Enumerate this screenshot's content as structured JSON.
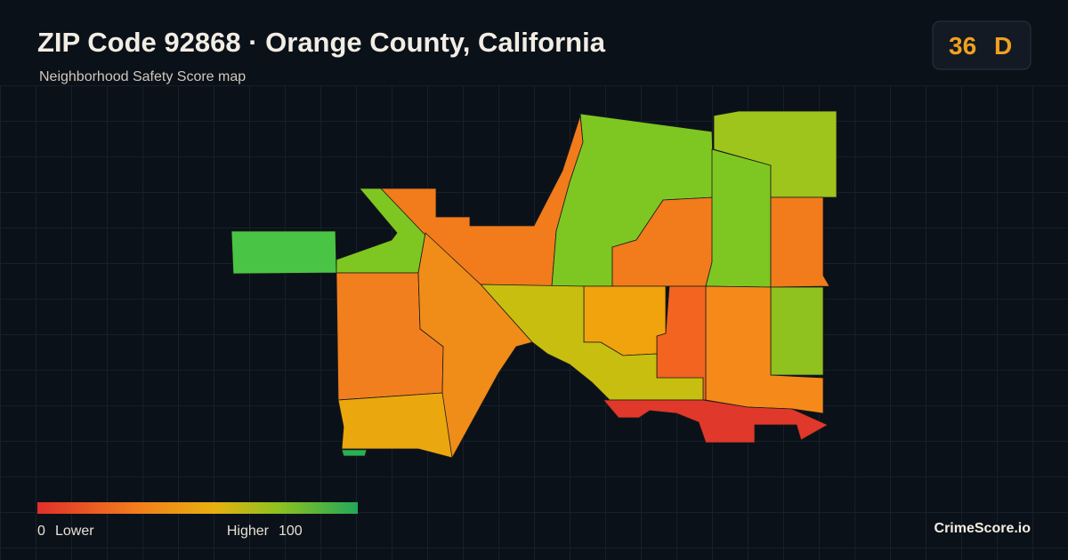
{
  "header": {
    "title": "ZIP Code 92868 · Orange County, California",
    "subtitle": "Neighborhood Safety Score map"
  },
  "badge": {
    "score": "36",
    "grade": "D"
  },
  "legend": {
    "min": "0",
    "min_label": "Lower",
    "max_label": "Higher",
    "max": "100"
  },
  "brand": "CrimeScore.io"
}
